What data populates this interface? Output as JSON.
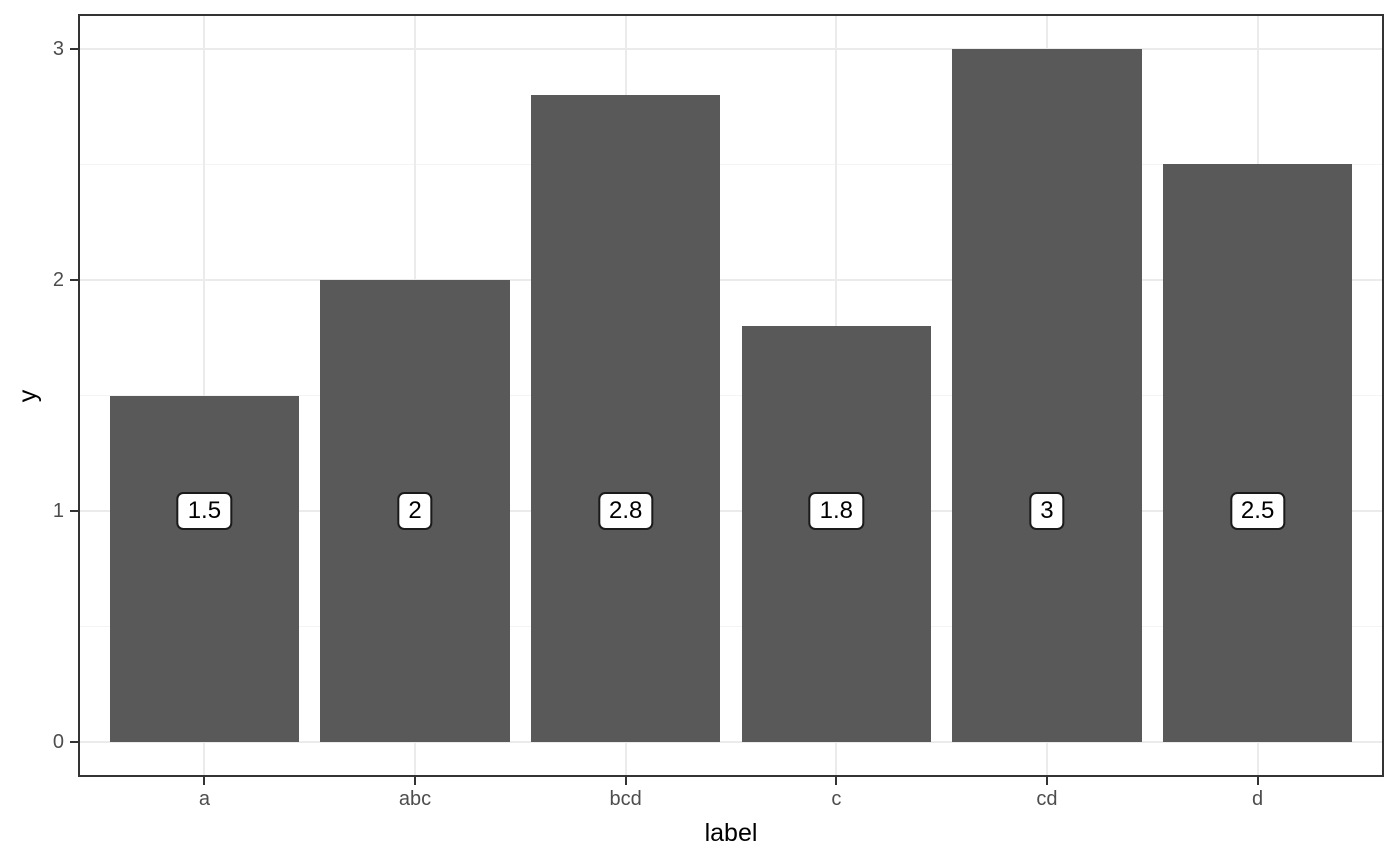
{
  "chart_data": {
    "type": "bar",
    "title": "",
    "xlabel": "label",
    "ylabel": "y",
    "categories": [
      "a",
      "abc",
      "bcd",
      "c",
      "cd",
      "d"
    ],
    "values": [
      1.5,
      2,
      2.8,
      1.8,
      3,
      2.5
    ],
    "bar_value_labels": [
      "1.5",
      "2",
      "2.8",
      "1.8",
      "3",
      "2.5"
    ],
    "y_major_ticks": [
      0,
      1,
      2,
      3
    ],
    "y_tick_labels": [
      "0",
      "1",
      "2",
      "3"
    ],
    "y_minor_gridlines": [
      0.5,
      1.5,
      2.5
    ],
    "ylim": [
      -0.15,
      3.15
    ],
    "bar_width_fraction": 0.9,
    "bar_label_y": 1,
    "grid": "horizontal major+minor, vertical major at categories",
    "legend_position": "none"
  },
  "colors": {
    "background": "#ffffff",
    "bar_fill": "#595959",
    "panel_border": "#333333",
    "tick_mark": "#333333",
    "axis_text": "#4d4d4d",
    "axis_title": "#000000",
    "grid_major": "#ebebeb",
    "grid_minor": "#f4f4f4",
    "label_box_bg": "#ffffff",
    "label_box_border": "#1a1a1a",
    "label_text": "#000000"
  }
}
